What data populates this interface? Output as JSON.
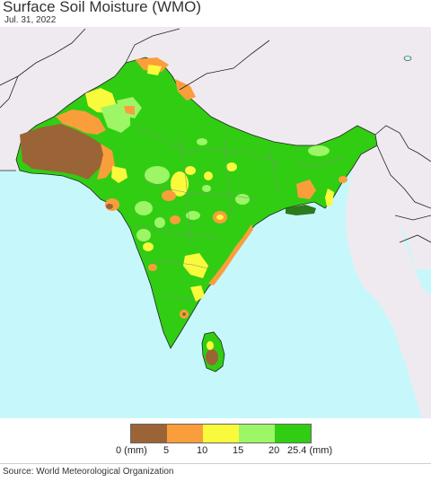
{
  "title": "Surface Soil Moisture (WMO)",
  "date": "Jul. 31, 2022",
  "source": "Source: World Meteorological Organization",
  "colors": {
    "ocean": "#c6f8fb",
    "land_outside": "#efeaef",
    "border": "#222222",
    "state_line": "#888888",
    "lake": "#c6f8fb"
  },
  "legend": {
    "unit_label": "(mm)",
    "ticks": [
      "0 (mm)",
      "5",
      "10",
      "15",
      "20",
      "25.4 (mm)"
    ],
    "classes": [
      {
        "range": "0-5",
        "color": "#9b6437"
      },
      {
        "range": "5-10",
        "color": "#fa9e3c"
      },
      {
        "range": "10-15",
        "color": "#fafa3c"
      },
      {
        "range": "15-20",
        "color": "#9cf665"
      },
      {
        "range": "20-25.4",
        "color": "#31cd12"
      }
    ]
  }
}
